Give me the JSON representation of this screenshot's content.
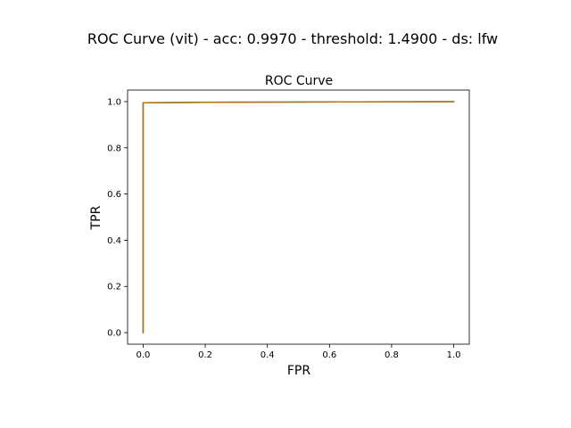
{
  "figure": {
    "suptitle": "ROC Curve (vit) - acc: 0.9970 - threshold: 1.4900 - ds: lfw"
  },
  "chart_data": {
    "type": "line",
    "title": "ROC Curve",
    "xlabel": "FPR",
    "ylabel": "TPR",
    "xlim": [
      -0.05,
      1.05
    ],
    "ylim": [
      -0.05,
      1.05
    ],
    "xticks": [
      0.0,
      0.2,
      0.4,
      0.6,
      0.8,
      1.0
    ],
    "yticks": [
      0.0,
      0.2,
      0.4,
      0.6,
      0.8,
      1.0
    ],
    "xtick_labels": [
      "0.0",
      "0.2",
      "0.4",
      "0.6",
      "0.8",
      "1.0"
    ],
    "ytick_labels": [
      "0.0",
      "0.2",
      "0.4",
      "0.6",
      "0.8",
      "1.0"
    ],
    "grid": false,
    "series": [
      {
        "color": "#1f77b4",
        "x": [
          0.0,
          0.0,
          0.0,
          0.003,
          0.2,
          0.45,
          0.7,
          1.0
        ],
        "y": [
          0.0,
          0.6,
          0.995,
          0.995,
          0.997,
          0.998,
          0.999,
          1.0
        ]
      },
      {
        "color": "#b8730f",
        "x": [
          0.0,
          0.0,
          0.0,
          0.003,
          0.2,
          0.45,
          0.7,
          1.0
        ],
        "y": [
          0.0,
          0.6,
          0.995,
          0.995,
          0.997,
          0.998,
          0.999,
          1.0
        ]
      }
    ]
  }
}
